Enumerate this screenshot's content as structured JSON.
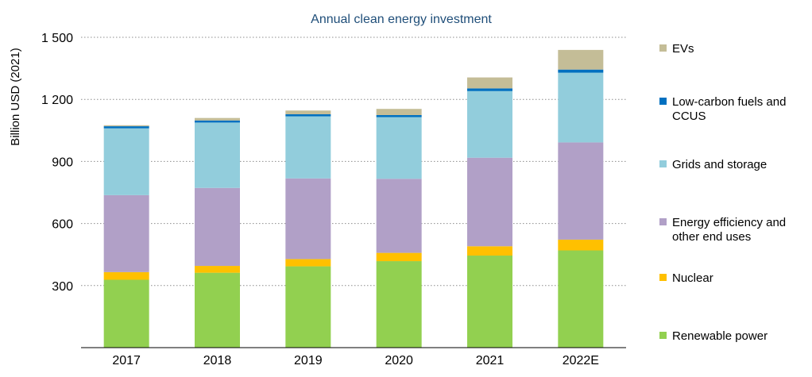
{
  "chart_data": {
    "type": "bar",
    "stacked": true,
    "title": "Annual clean energy investment",
    "xlabel": "",
    "ylabel": "Billion USD (2021)",
    "ylim": [
      0,
      1500
    ],
    "yticks": [
      "300",
      "600",
      "900",
      "1 200",
      "1 500"
    ],
    "ytick_values": [
      300,
      600,
      900,
      1200,
      1500
    ],
    "grid": true,
    "legend_position": "right",
    "categories": [
      "2017",
      "2018",
      "2019",
      "2020",
      "2021",
      "2022E"
    ],
    "series": [
      {
        "name": "Renewable power",
        "color": "#92d050",
        "values": [
          328,
          362,
          393,
          418,
          445,
          470
        ]
      },
      {
        "name": "Nuclear",
        "color": "#ffc000",
        "values": [
          37,
          33,
          35,
          40,
          45,
          52
        ]
      },
      {
        "name": "Energy efficiency and other end uses",
        "color": "#b1a0c7",
        "values": [
          372,
          377,
          390,
          358,
          428,
          470
        ]
      },
      {
        "name": "Grids and storage",
        "color": "#92cddc",
        "values": [
          323,
          316,
          300,
          298,
          322,
          337
        ]
      },
      {
        "name": "Low-carbon fuels and CCUS",
        "color": "#0070c0",
        "values": [
          10,
          10,
          10,
          10,
          13,
          15
        ]
      },
      {
        "name": "EVs",
        "color": "#c4bd97",
        "values": [
          5,
          12,
          18,
          30,
          53,
          95
        ]
      }
    ],
    "legend_order": [
      "EVs",
      "Low-carbon fuels and CCUS",
      "Grids and storage",
      "Energy efficiency and other end uses",
      "Nuclear",
      "Renewable power"
    ],
    "legend_lines": {
      "EVs": [
        "EVs"
      ],
      "Low-carbon fuels and CCUS": [
        "Low-carbon fuels and",
        "CCUS"
      ],
      "Grids and storage": [
        "Grids and storage"
      ],
      "Energy efficiency and other end uses": [
        "Energy efficiency and",
        "other end uses"
      ],
      "Nuclear": [
        "Nuclear"
      ],
      "Renewable power": [
        "Renewable power"
      ]
    }
  }
}
